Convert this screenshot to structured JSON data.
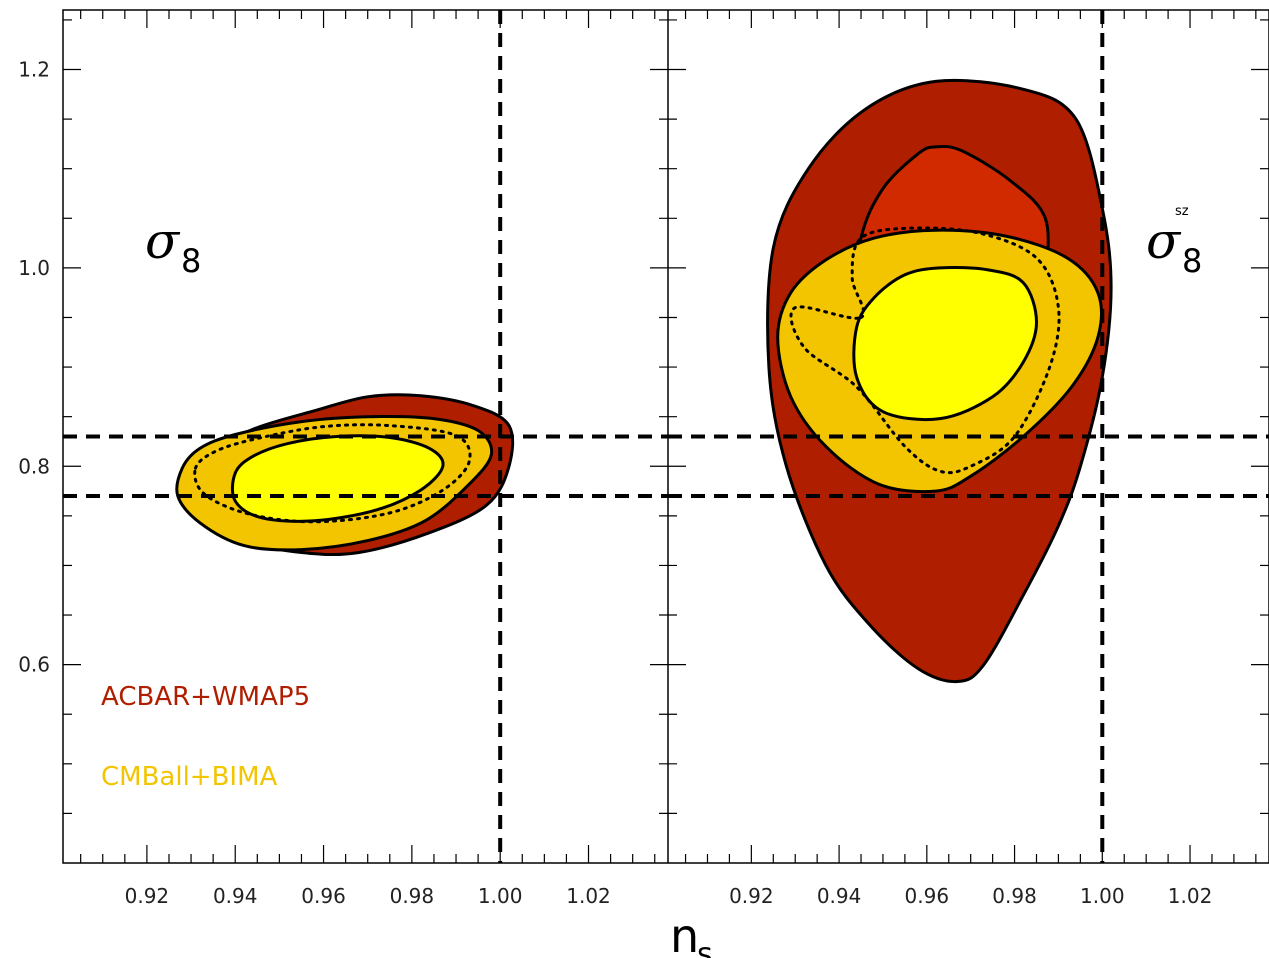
{
  "chart_data": {
    "type": "contour",
    "xlabel": "n",
    "xlabel_sub": "s",
    "xlim": [
      0.901,
      1.038
    ],
    "ylim": [
      0.4,
      1.26
    ],
    "x_ticks": [
      0.92,
      0.94,
      0.96,
      0.98,
      1.0,
      1.02
    ],
    "x_tick_labels": [
      "0.92",
      "0.94",
      "0.96",
      "0.98",
      "1.00",
      "1.02"
    ],
    "y_ticks": [
      0.6,
      0.8,
      1.0,
      1.2
    ],
    "y_tick_labels": [
      "0.6",
      "0.8",
      "1.0",
      "1.2"
    ],
    "grid": false,
    "legend_position": "bottom-left",
    "legend": [
      {
        "name": "ACBAR+WMAP5",
        "color": "#b01e00"
      },
      {
        "name": "CMBall+BIMA",
        "color": "#f2c500"
      }
    ],
    "reference_lines": {
      "vertical_x": [
        1.0
      ],
      "horizontal_y": [
        0.77,
        0.83
      ],
      "style": "dashed"
    },
    "panels": [
      {
        "label": "σ",
        "label_sub": "8",
        "label_sup": "",
        "series": [
          {
            "name": "ACBAR+WMAP5",
            "level": "95%",
            "fill": "#b01e00",
            "points": [
              [
                0.929,
                0.797
              ],
              [
                0.935,
                0.818
              ],
              [
                0.945,
                0.839
              ],
              [
                0.958,
                0.856
              ],
              [
                0.97,
                0.87
              ],
              [
                0.982,
                0.871
              ],
              [
                0.994,
                0.861
              ],
              [
                1.002,
                0.841
              ],
              [
                1.002,
                0.8
              ],
              [
                0.997,
                0.761
              ],
              [
                0.984,
                0.733
              ],
              [
                0.968,
                0.713
              ],
              [
                0.955,
                0.713
              ],
              [
                0.942,
                0.725
              ],
              [
                0.932,
                0.752
              ]
            ]
          },
          {
            "name": "CMBall+BIMA",
            "level": "95%",
            "fill": "#f2c500",
            "points": [
              [
                0.928,
                0.798
              ],
              [
                0.932,
                0.818
              ],
              [
                0.94,
                0.832
              ],
              [
                0.955,
                0.845
              ],
              [
                0.97,
                0.85
              ],
              [
                0.985,
                0.848
              ],
              [
                0.995,
                0.836
              ],
              [
                0.998,
                0.812
              ],
              [
                0.993,
                0.782
              ],
              [
                0.983,
                0.745
              ],
              [
                0.97,
                0.725
              ],
              [
                0.955,
                0.716
              ],
              [
                0.942,
                0.72
              ],
              [
                0.932,
                0.743
              ],
              [
                0.927,
                0.77
              ]
            ]
          },
          {
            "name": "CMBall+BIMA",
            "level": "68%",
            "fill": "#ffff00",
            "points": [
              [
                0.94,
                0.793
              ],
              [
                0.944,
                0.81
              ],
              [
                0.952,
                0.823
              ],
              [
                0.963,
                0.83
              ],
              [
                0.975,
                0.829
              ],
              [
                0.984,
                0.818
              ],
              [
                0.987,
                0.8
              ],
              [
                0.982,
                0.776
              ],
              [
                0.972,
                0.756
              ],
              [
                0.958,
                0.745
              ],
              [
                0.946,
                0.748
              ],
              [
                0.94,
                0.765
              ]
            ]
          },
          {
            "name": "ACBAR+WMAP5",
            "level": "68%",
            "fill": "none",
            "dotted": true,
            "points": [
              [
                0.931,
                0.798
              ],
              [
                0.936,
                0.816
              ],
              [
                0.946,
                0.829
              ],
              [
                0.96,
                0.84
              ],
              [
                0.975,
                0.841
              ],
              [
                0.99,
                0.831
              ],
              [
                0.993,
                0.805
              ],
              [
                0.987,
                0.776
              ],
              [
                0.975,
                0.753
              ],
              [
                0.958,
                0.744
              ],
              [
                0.943,
                0.752
              ],
              [
                0.933,
                0.772
              ]
            ]
          }
        ]
      },
      {
        "label": "σ",
        "label_sub": "8",
        "label_sup": "sz",
        "series": [
          {
            "name": "ACBAR+WMAP5",
            "level": "95%",
            "fill": "#b01e00",
            "points": [
              [
                0.962,
                1.188
              ],
              [
                0.982,
                1.18
              ],
              [
                0.994,
                1.15
              ],
              [
                1.0,
                1.06
              ],
              [
                1.002,
                0.98
              ],
              [
                1.0,
                0.89
              ],
              [
                0.995,
                0.8
              ],
              [
                0.99,
                0.74
              ],
              [
                0.982,
                0.67
              ],
              [
                0.973,
                0.6
              ],
              [
                0.967,
                0.583
              ],
              [
                0.958,
                0.596
              ],
              [
                0.947,
                0.64
              ],
              [
                0.937,
                0.7
              ],
              [
                0.928,
                0.8
              ],
              [
                0.924,
                0.9
              ],
              [
                0.925,
                1.02
              ],
              [
                0.933,
                1.1
              ],
              [
                0.946,
                1.16
              ]
            ]
          },
          {
            "name": "ACBAR+WMAP5",
            "level": "68%",
            "fill": "#d22a00",
            "points": [
              [
                0.945,
                1.03
              ],
              [
                0.95,
                1.08
              ],
              [
                0.958,
                1.115
              ],
              [
                0.962,
                1.122
              ],
              [
                0.968,
                1.118
              ],
              [
                0.979,
                1.088
              ],
              [
                0.987,
                1.05
              ],
              [
                0.987,
                0.99
              ],
              [
                0.985,
                0.95
              ],
              [
                0.975,
                0.87
              ],
              [
                0.962,
                0.85
              ],
              [
                0.948,
                0.88
              ],
              [
                0.943,
                0.95
              ]
            ]
          },
          {
            "name": "CMBall+BIMA",
            "level": "95%",
            "fill": "#f2c500",
            "points": [
              [
                0.926,
                0.93
              ],
              [
                0.929,
                0.975
              ],
              [
                0.937,
                1.008
              ],
              [
                0.948,
                1.03
              ],
              [
                0.962,
                1.038
              ],
              [
                0.978,
                1.032
              ],
              [
                0.992,
                1.01
              ],
              [
                0.999,
                0.975
              ],
              [
                0.999,
                0.93
              ],
              [
                0.993,
                0.88
              ],
              [
                0.982,
                0.83
              ],
              [
                0.97,
                0.79
              ],
              [
                0.962,
                0.775
              ],
              [
                0.949,
                0.782
              ],
              [
                0.937,
                0.82
              ],
              [
                0.929,
                0.87
              ]
            ]
          },
          {
            "name": "CMBall+BIMA",
            "level": "68%",
            "fill": "#ffff00",
            "points": [
              [
                0.944,
                0.94
              ],
              [
                0.948,
                0.97
              ],
              [
                0.955,
                0.993
              ],
              [
                0.963,
                1.0
              ],
              [
                0.974,
                0.998
              ],
              [
                0.982,
                0.985
              ],
              [
                0.985,
                0.945
              ],
              [
                0.982,
                0.905
              ],
              [
                0.975,
                0.87
              ],
              [
                0.963,
                0.848
              ],
              [
                0.95,
                0.855
              ],
              [
                0.944,
                0.89
              ]
            ]
          },
          {
            "name": "ACBAR+WMAP5",
            "level": "68%",
            "fill": "none",
            "dotted": true,
            "points": [
              [
                0.945,
                0.95
              ],
              [
                0.943,
                0.99
              ],
              [
                0.945,
                1.03
              ],
              [
                0.956,
                1.04
              ],
              [
                0.972,
                1.035
              ],
              [
                0.985,
                1.01
              ],
              [
                0.99,
                0.96
              ],
              [
                0.988,
                0.9
              ],
              [
                0.98,
                0.83
              ],
              [
                0.97,
                0.8
              ],
              [
                0.963,
                0.795
              ],
              [
                0.955,
                0.82
              ],
              [
                0.944,
                0.88
              ],
              [
                0.932,
                0.92
              ],
              [
                0.93,
                0.96
              ]
            ]
          }
        ]
      }
    ]
  }
}
